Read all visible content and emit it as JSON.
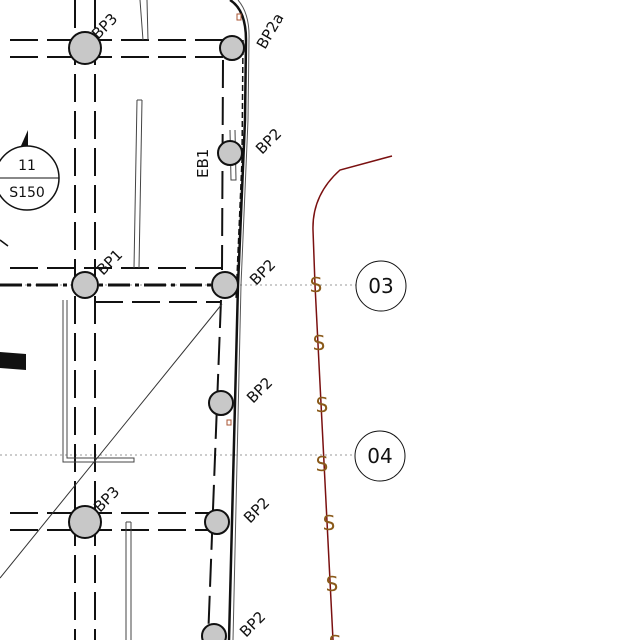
{
  "pile_labels": {
    "bp3_top": "BP3",
    "bp2a": "BP2a",
    "eb1": "EB1",
    "bp2_upper": "BP2",
    "bp1": "BP1",
    "bp2_grid03": "BP2",
    "bp2_mid": "BP2",
    "bp3_bottom": "BP3",
    "bp2_lower": "BP2",
    "bp2_bottom": "BP2"
  },
  "grid_lines": {
    "line_03": "03",
    "line_04": "04"
  },
  "section_marker": {
    "number": "11",
    "sheet": "S150"
  },
  "sewer_symbol": "S",
  "colors": {
    "linework": "#111111",
    "pile_fill": "#c8c8c8",
    "sewer_line": "#7a1010",
    "sewer_symbol": "#8a5a1a",
    "grid_dash": "#999999"
  }
}
